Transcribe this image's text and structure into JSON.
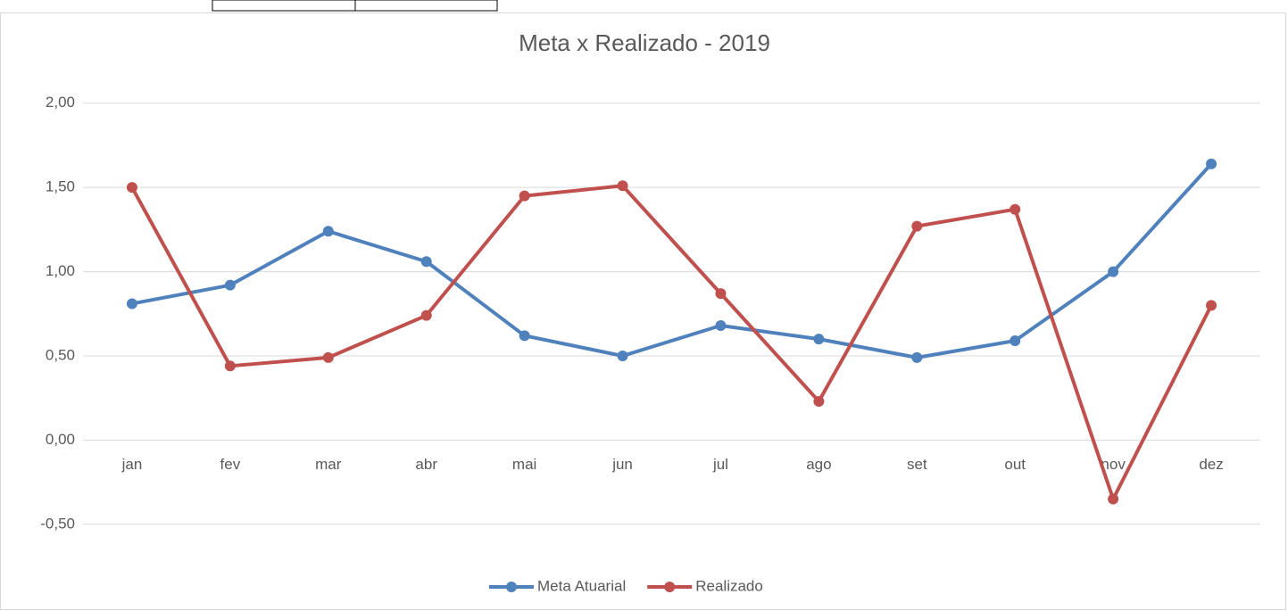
{
  "chart_data": {
    "type": "line",
    "title": "Meta x Realizado - 2019",
    "categories": [
      "jan",
      "fev",
      "mar",
      "abr",
      "mai",
      "jun",
      "jul",
      "ago",
      "set",
      "out",
      "nov",
      "dez"
    ],
    "series": [
      {
        "name": "Meta Atuarial",
        "color": "#4f81bd",
        "values": [
          0.81,
          0.92,
          1.24,
          1.06,
          0.62,
          0.5,
          0.68,
          0.6,
          0.49,
          0.59,
          1.0,
          1.64
        ]
      },
      {
        "name": "Realizado",
        "color": "#c0504d",
        "values": [
          1.5,
          0.44,
          0.49,
          0.74,
          1.45,
          1.51,
          0.87,
          0.23,
          1.27,
          1.37,
          -0.35,
          0.8
        ]
      }
    ],
    "ylim": [
      -0.75,
      2.2
    ],
    "yticks": [
      {
        "value": -0.5,
        "label": "-0,50"
      },
      {
        "value": 0,
        "label": "0,00"
      },
      {
        "value": 0.5,
        "label": "0,50"
      },
      {
        "value": 1,
        "label": "1,00"
      },
      {
        "value": 1.5,
        "label": "1,50"
      },
      {
        "value": 2,
        "label": "2,00"
      }
    ],
    "grid": true,
    "legend": "bottom"
  }
}
